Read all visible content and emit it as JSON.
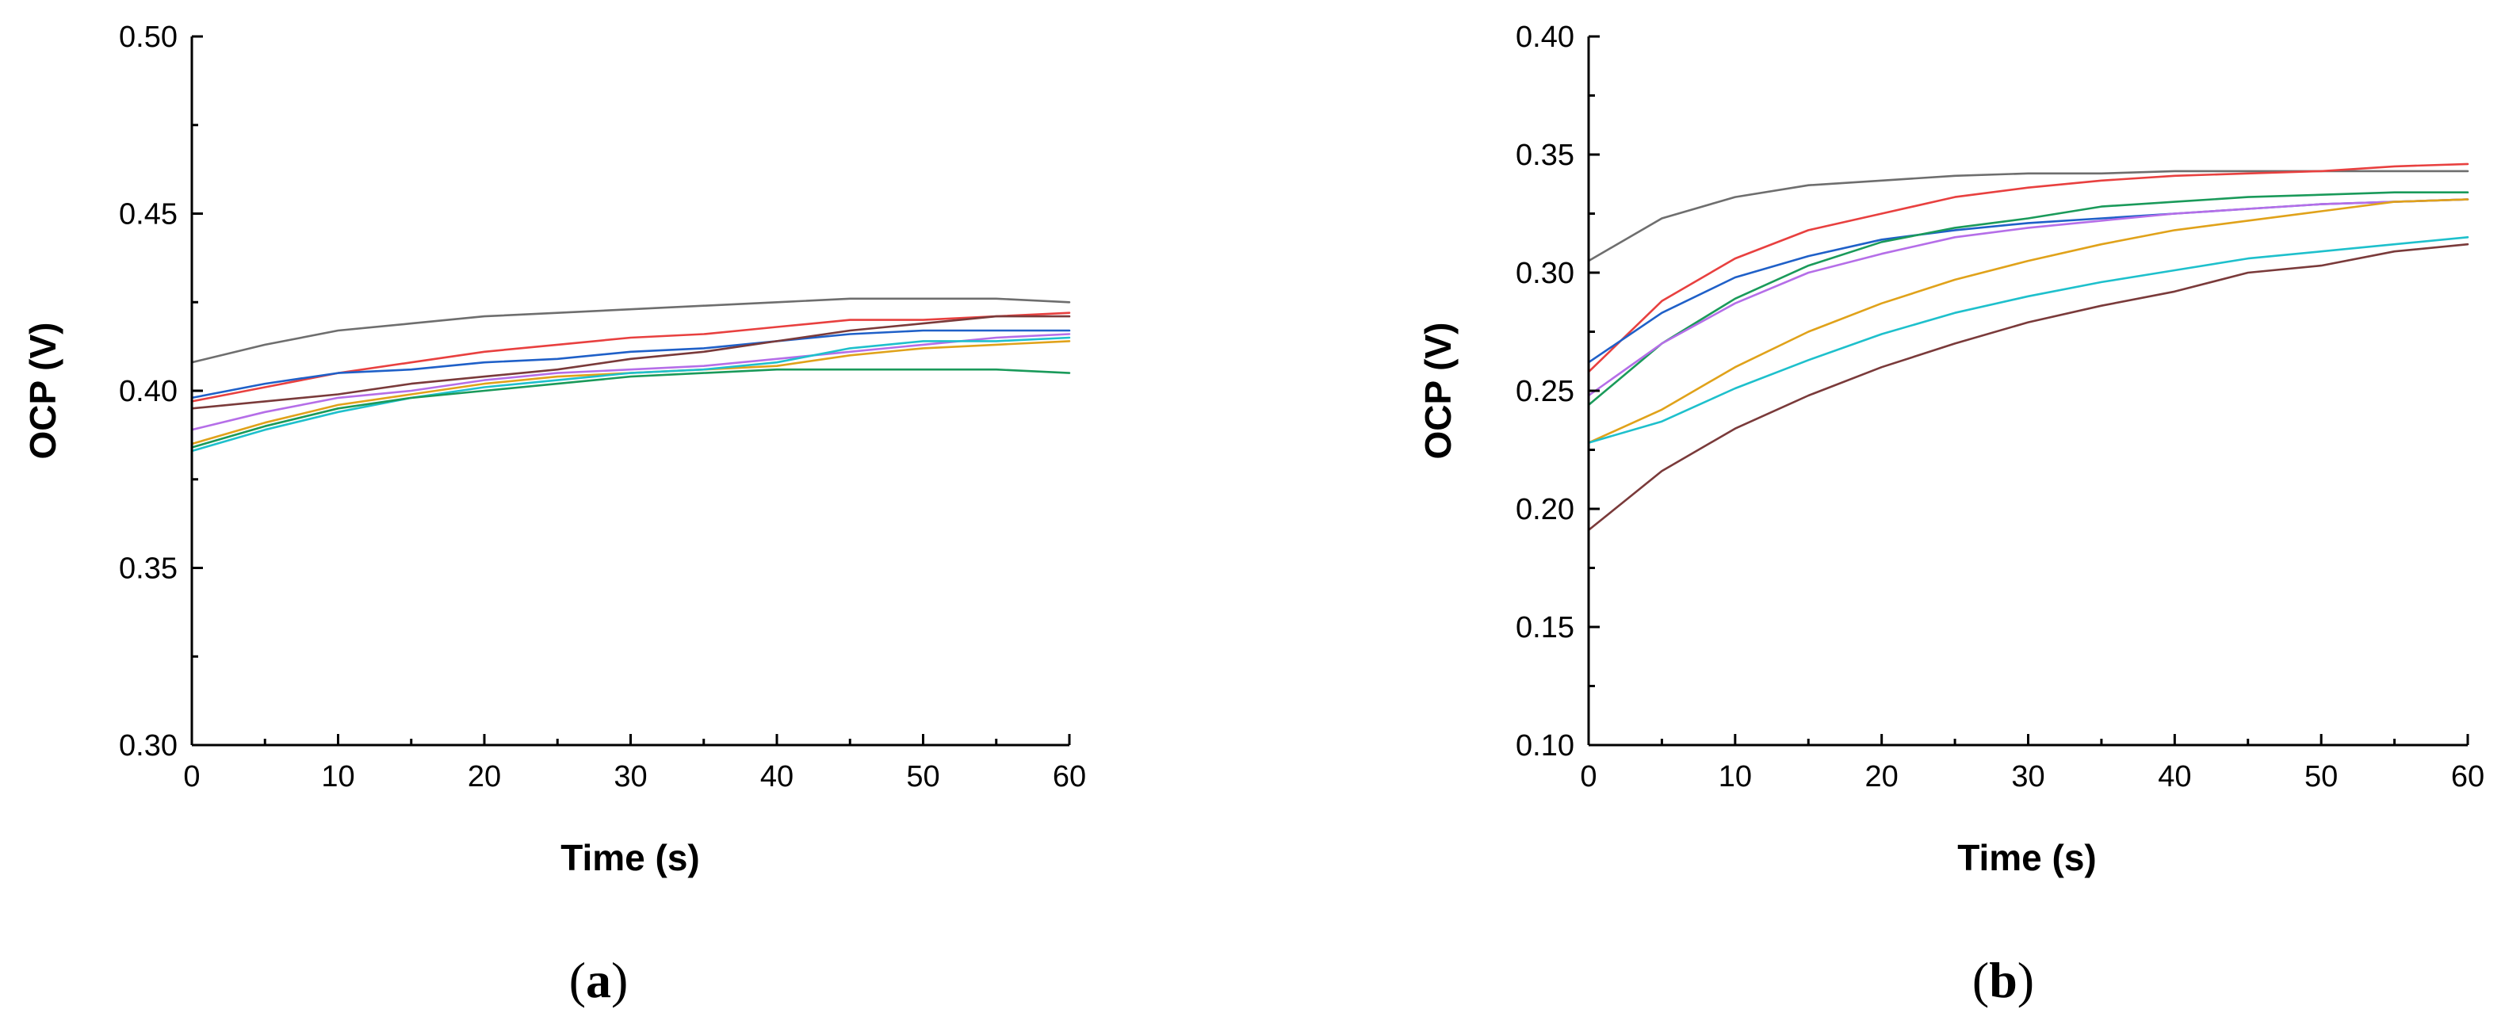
{
  "chart_data": [
    {
      "type": "line",
      "panel_label": "(a)",
      "panel_letter": "a",
      "xlabel": "Time (s)",
      "ylabel": "OCP (V)",
      "xlim": [
        0,
        60
      ],
      "ylim": [
        0.3,
        0.5
      ],
      "x_ticks": [
        "0",
        "10",
        "20",
        "30",
        "40",
        "50",
        "60"
      ],
      "y_ticks": [
        "0.30",
        "0.35",
        "0.40",
        "0.45",
        "0.50"
      ],
      "x": [
        0,
        5,
        10,
        15,
        20,
        25,
        30,
        35,
        40,
        45,
        50,
        55,
        60
      ],
      "series": [
        {
          "name": "gray",
          "color": "#6e6e6e",
          "values": [
            0.408,
            0.413,
            0.417,
            0.419,
            0.421,
            0.422,
            0.423,
            0.424,
            0.425,
            0.426,
            0.426,
            0.426,
            0.425
          ]
        },
        {
          "name": "red",
          "color": "#e8403f",
          "values": [
            0.397,
            0.401,
            0.405,
            0.408,
            0.411,
            0.413,
            0.415,
            0.416,
            0.418,
            0.42,
            0.42,
            0.421,
            0.422
          ]
        },
        {
          "name": "blue",
          "color": "#1f60c8",
          "values": [
            0.398,
            0.402,
            0.405,
            0.406,
            0.408,
            0.409,
            0.411,
            0.412,
            0.414,
            0.416,
            0.417,
            0.417,
            0.417
          ]
        },
        {
          "name": "brown",
          "color": "#7a3a3a",
          "values": [
            0.395,
            0.397,
            0.399,
            0.402,
            0.404,
            0.406,
            0.409,
            0.411,
            0.414,
            0.417,
            0.419,
            0.421,
            0.421
          ]
        },
        {
          "name": "violet",
          "color": "#b56ee8",
          "values": [
            0.389,
            0.394,
            0.398,
            0.4,
            0.403,
            0.405,
            0.406,
            0.407,
            0.409,
            0.411,
            0.413,
            0.415,
            0.416
          ]
        },
        {
          "name": "orange",
          "color": "#e0a21a",
          "values": [
            0.385,
            0.391,
            0.396,
            0.399,
            0.402,
            0.404,
            0.405,
            0.406,
            0.407,
            0.41,
            0.412,
            0.413,
            0.414
          ]
        },
        {
          "name": "cyan",
          "color": "#1ec0cc",
          "values": [
            0.383,
            0.389,
            0.394,
            0.398,
            0.401,
            0.403,
            0.405,
            0.406,
            0.408,
            0.412,
            0.414,
            0.414,
            0.415
          ]
        },
        {
          "name": "green",
          "color": "#1a9a5a",
          "values": [
            0.384,
            0.39,
            0.395,
            0.398,
            0.4,
            0.402,
            0.404,
            0.405,
            0.406,
            0.406,
            0.406,
            0.406,
            0.405
          ]
        }
      ]
    },
    {
      "type": "line",
      "panel_label": "(b)",
      "panel_letter": "b",
      "xlabel": "Time (s)",
      "ylabel": "OCP (V)",
      "xlim": [
        0,
        60
      ],
      "ylim": [
        0.1,
        0.4
      ],
      "x_ticks": [
        "0",
        "10",
        "20",
        "30",
        "40",
        "50",
        "60"
      ],
      "y_ticks": [
        "0.10",
        "0.15",
        "0.20",
        "0.25",
        "0.30",
        "0.35",
        "0.40"
      ],
      "x": [
        0,
        5,
        10,
        15,
        20,
        25,
        30,
        35,
        40,
        45,
        50,
        55,
        60
      ],
      "series": [
        {
          "name": "gray",
          "color": "#6e6e6e",
          "values": [
            0.305,
            0.323,
            0.332,
            0.337,
            0.339,
            0.341,
            0.342,
            0.342,
            0.343,
            0.343,
            0.343,
            0.343,
            0.343
          ]
        },
        {
          "name": "red",
          "color": "#e8403f",
          "values": [
            0.258,
            0.288,
            0.306,
            0.318,
            0.325,
            0.332,
            0.336,
            0.339,
            0.341,
            0.342,
            0.343,
            0.345,
            0.346
          ]
        },
        {
          "name": "blue",
          "color": "#1f60c8",
          "values": [
            0.262,
            0.283,
            0.298,
            0.307,
            0.314,
            0.318,
            0.321,
            0.323,
            0.325,
            0.327,
            0.329,
            0.33,
            0.331
          ]
        },
        {
          "name": "green",
          "color": "#1a9a5a",
          "values": [
            0.244,
            0.27,
            0.289,
            0.303,
            0.313,
            0.319,
            0.323,
            0.328,
            0.33,
            0.332,
            0.333,
            0.334,
            0.334
          ]
        },
        {
          "name": "violet",
          "color": "#b56ee8",
          "values": [
            0.248,
            0.27,
            0.287,
            0.3,
            0.308,
            0.315,
            0.319,
            0.322,
            0.325,
            0.327,
            0.329,
            0.33,
            0.331
          ]
        },
        {
          "name": "orange",
          "color": "#e0a21a",
          "values": [
            0.228,
            0.242,
            0.26,
            0.275,
            0.287,
            0.297,
            0.305,
            0.312,
            0.318,
            0.322,
            0.326,
            0.33,
            0.331
          ]
        },
        {
          "name": "cyan",
          "color": "#1ec0cc",
          "values": [
            0.228,
            0.237,
            0.251,
            0.263,
            0.274,
            0.283,
            0.29,
            0.296,
            0.301,
            0.306,
            0.309,
            0.312,
            0.315
          ]
        },
        {
          "name": "brown",
          "color": "#7a3a3a",
          "values": [
            0.191,
            0.216,
            0.234,
            0.248,
            0.26,
            0.27,
            0.279,
            0.286,
            0.292,
            0.3,
            0.303,
            0.309,
            0.312
          ]
        }
      ]
    }
  ]
}
